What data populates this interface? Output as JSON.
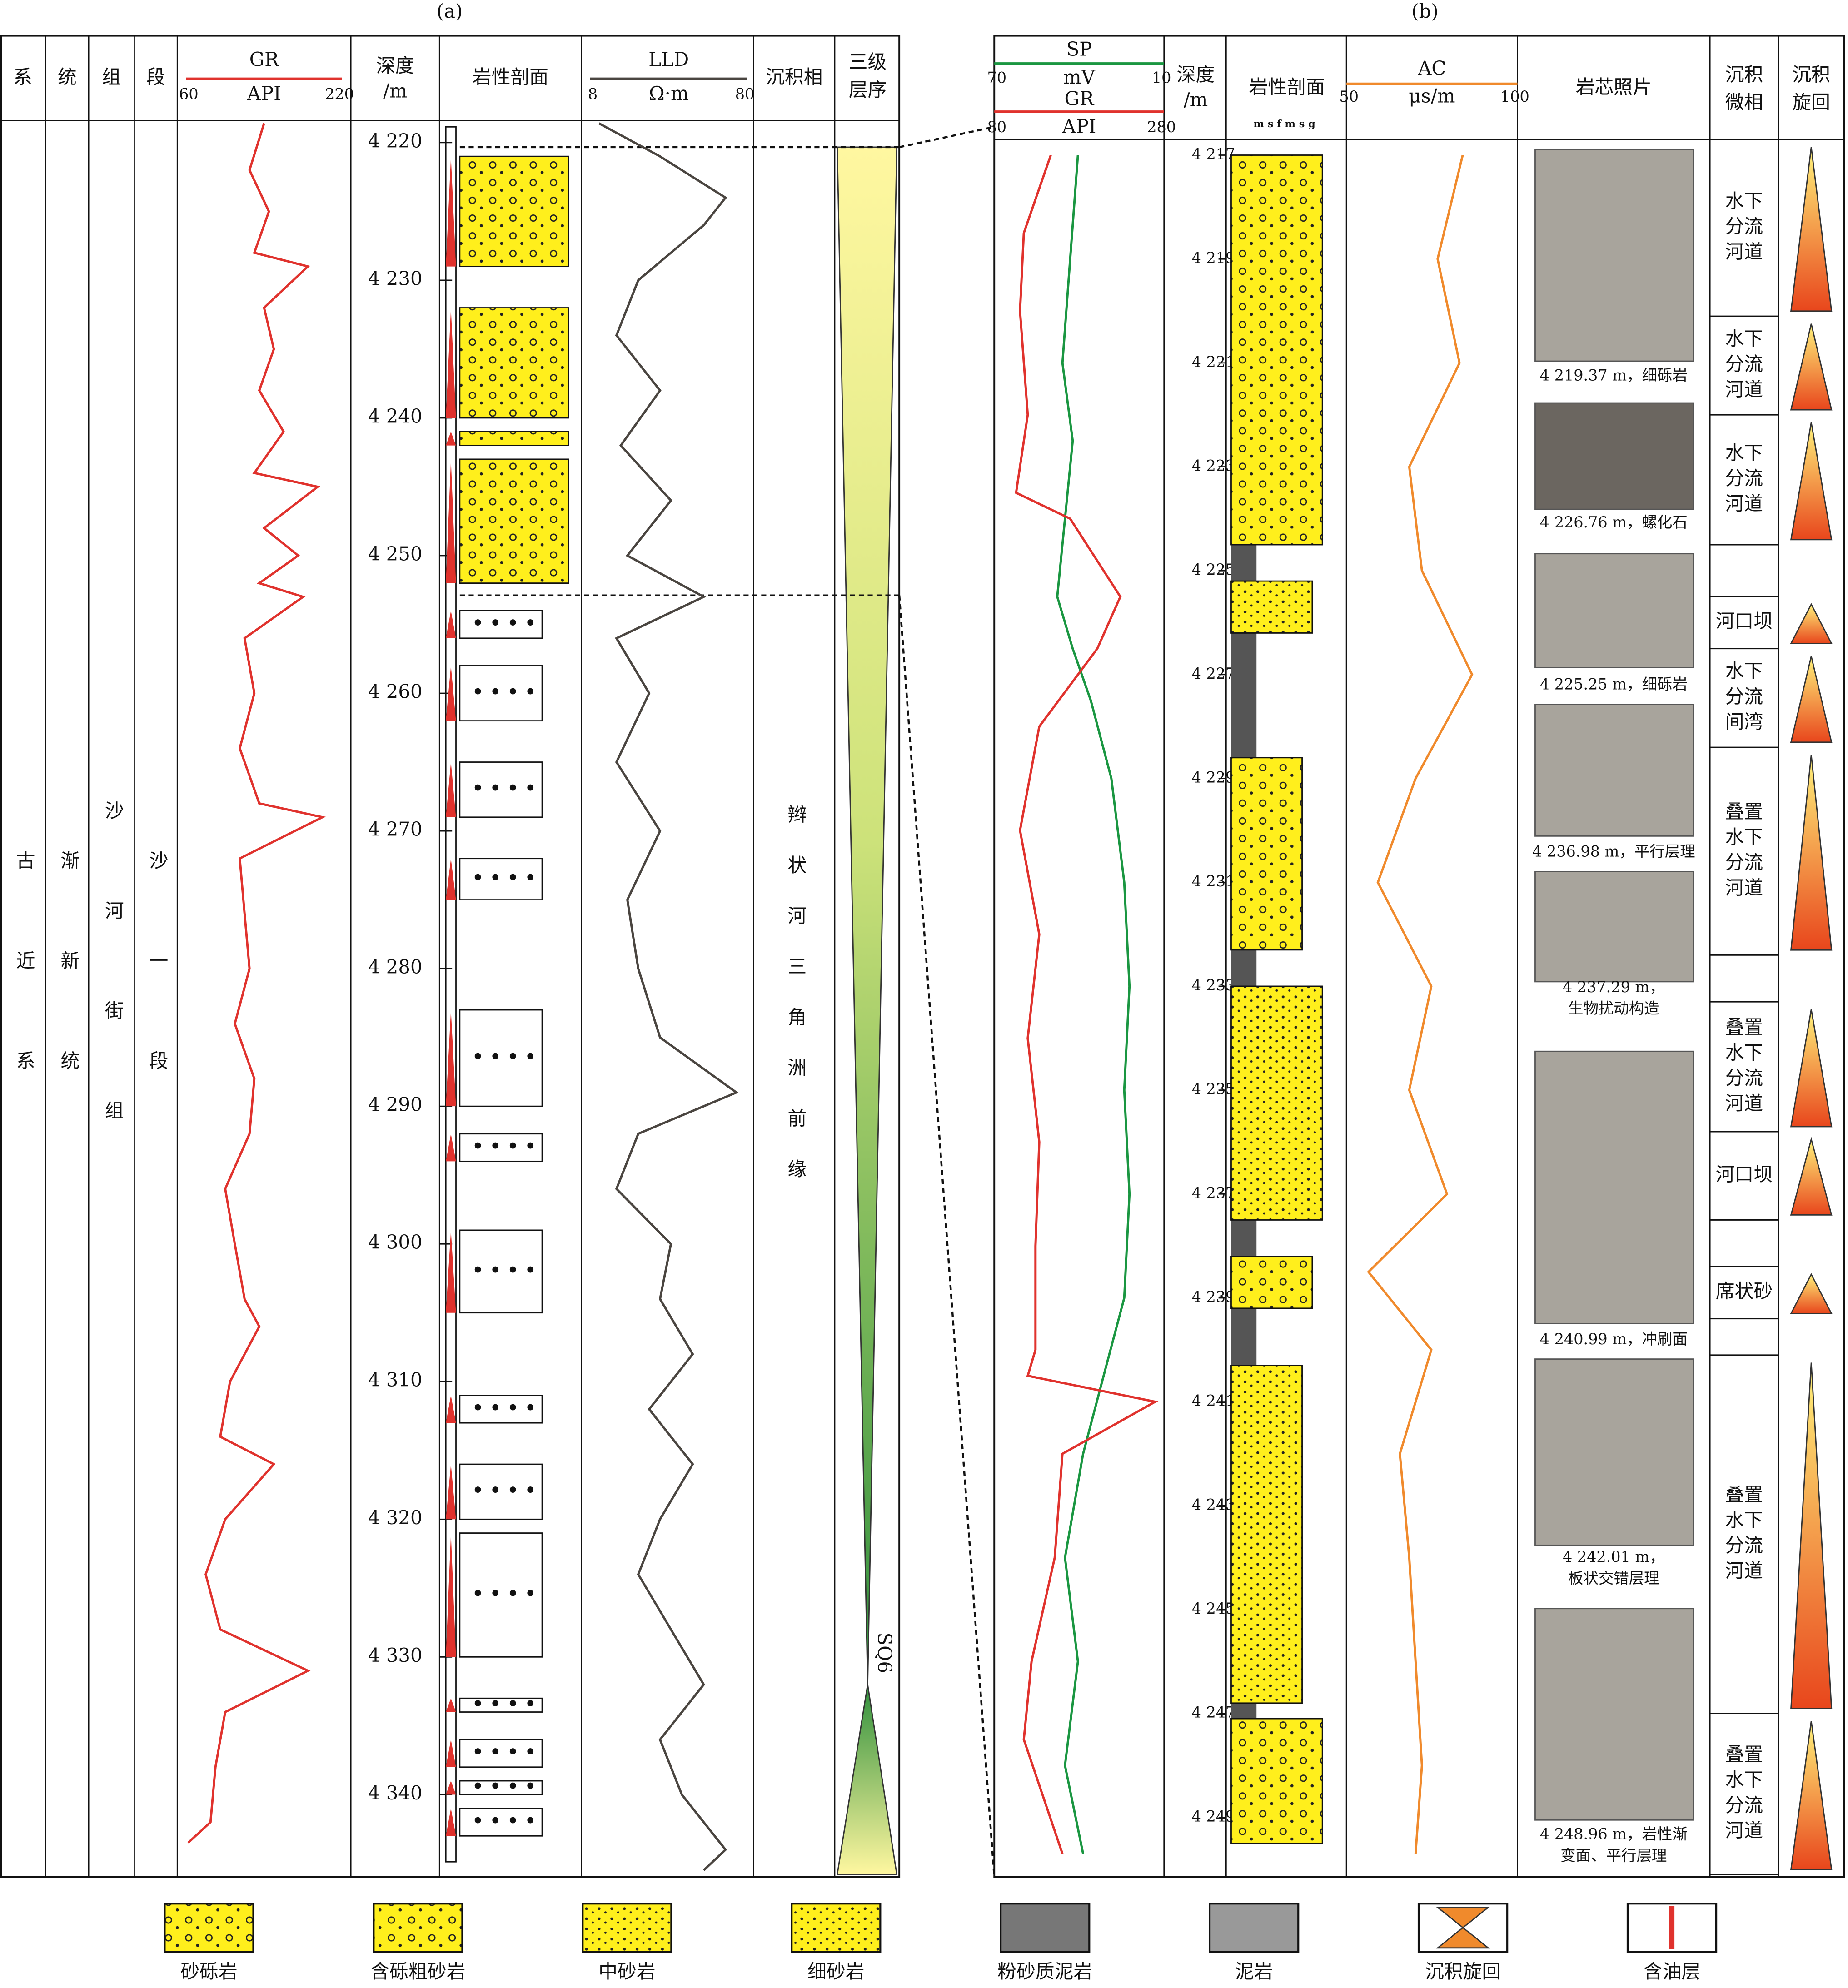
{
  "panel_a": {
    "label": "(a)",
    "headers": {
      "system": "系",
      "series": "统",
      "formation": "组",
      "member": "段",
      "depth": [
        "深度",
        "/m"
      ],
      "lithology": "岩性剖面",
      "facies": "沉积相",
      "sequence": [
        "三级",
        "层序"
      ]
    },
    "gr": {
      "name": "GR",
      "unit": "API",
      "scale": [
        60,
        220
      ],
      "color": "#e0322d",
      "depth": [
        4218.6,
        4222,
        4225,
        4228,
        4229,
        4232,
        4235,
        4238,
        4241,
        4244,
        4245,
        4248,
        4250,
        4252,
        4253,
        4256,
        4260,
        4264,
        4268,
        4269,
        4272,
        4276,
        4280,
        4284,
        4288,
        4292,
        4296,
        4300,
        4304,
        4306,
        4310,
        4314,
        4316,
        4320,
        4324,
        4328,
        4331,
        4334,
        4338,
        4342,
        4343.5
      ],
      "values": [
        140,
        125,
        145,
        130,
        185,
        140,
        150,
        135,
        160,
        130,
        195,
        140,
        175,
        135,
        180,
        120,
        130,
        115,
        135,
        200,
        115,
        120,
        125,
        110,
        130,
        125,
        100,
        110,
        120,
        135,
        105,
        95,
        150,
        100,
        80,
        95,
        185,
        100,
        90,
        85,
        62
      ]
    },
    "lld": {
      "name": "LLD",
      "unit": "Ω·m",
      "scale": [
        8,
        80
      ],
      "color": "#4a4540",
      "depth": [
        4218.6,
        4221,
        4224,
        4226,
        4230,
        4234,
        4238,
        4242,
        4246,
        4250,
        4253,
        4256,
        4260,
        4265,
        4270,
        4275,
        4280,
        4285,
        4289,
        4292,
        4296,
        4300,
        4304,
        4308,
        4312,
        4316,
        4320,
        4324,
        4328,
        4332,
        4336,
        4340,
        4344,
        4345.5
      ],
      "values": [
        12,
        40,
        70,
        60,
        30,
        20,
        40,
        22,
        45,
        25,
        60,
        20,
        35,
        20,
        40,
        25,
        30,
        40,
        75,
        30,
        20,
        45,
        40,
        55,
        35,
        55,
        40,
        30,
        45,
        60,
        40,
        50,
        70,
        60
      ]
    },
    "depth_range": [
      4218.4,
      4345.8
    ],
    "depth_ticks": [
      {
        "value": 4220,
        "label": "4 220"
      },
      {
        "value": 4230,
        "label": "4 230"
      },
      {
        "value": 4240,
        "label": "4 240"
      },
      {
        "value": 4250,
        "label": "4 250"
      },
      {
        "value": 4260,
        "label": "4 260"
      },
      {
        "value": 4270,
        "label": "4 270"
      },
      {
        "value": 4280,
        "label": "4 280"
      },
      {
        "value": 4290,
        "label": "4 290"
      },
      {
        "value": 4300,
        "label": "4 300"
      },
      {
        "value": 4310,
        "label": "4 310"
      },
      {
        "value": 4320,
        "label": "4 320"
      },
      {
        "value": 4330,
        "label": "4 330"
      },
      {
        "value": 4340,
        "label": "4 340"
      }
    ],
    "sands": [
      {
        "top": 4221,
        "base": 4229
      },
      {
        "top": 4232,
        "base": 4240
      },
      {
        "top": 4241,
        "base": 4242
      },
      {
        "top": 4243,
        "base": 4252
      },
      {
        "top": 4254,
        "base": 4256
      },
      {
        "top": 4258,
        "base": 4262
      },
      {
        "top": 4265,
        "base": 4269
      },
      {
        "top": 4272,
        "base": 4275
      },
      {
        "top": 4283,
        "base": 4290
      },
      {
        "top": 4292,
        "base": 4294
      },
      {
        "top": 4299,
        "base": 4305
      },
      {
        "top": 4311,
        "base": 4313
      },
      {
        "top": 4316,
        "base": 4320
      },
      {
        "top": 4321,
        "base": 4330
      },
      {
        "top": 4333,
        "base": 4334
      },
      {
        "top": 4336,
        "base": 4338
      },
      {
        "top": 4339,
        "base": 4340
      },
      {
        "top": 4341,
        "base": 4343
      }
    ],
    "strat": {
      "system": "古近系",
      "series": "渐新统",
      "formation": "沙河街组",
      "member": "沙一段",
      "facies": "辫状河三角洲前缘",
      "sequence": "SQ6"
    }
  },
  "panel_b": {
    "label": "(b)",
    "headers": {
      "depth": [
        "深度",
        "/m"
      ],
      "lithology": "岩性剖面",
      "grain_scale": "m s f m s g",
      "photos": "岩芯照片",
      "microfacies": [
        "沉积",
        "微相"
      ],
      "cycle": [
        "沉积",
        "旋回"
      ]
    },
    "sp": {
      "name": "SP",
      "unit": "mV",
      "scale": [
        70,
        10
      ],
      "color": "#1a9641",
      "depth": [
        4217,
        4219,
        4221,
        4222.5,
        4224,
        4225.5,
        4226.5,
        4227.5,
        4229,
        4231,
        4233,
        4235,
        4237,
        4239,
        4240.5,
        4242,
        4244,
        4246,
        4248,
        4249.7
      ],
      "values": [
        40,
        43,
        46,
        42,
        45,
        48,
        42,
        35,
        27,
        22,
        20,
        22,
        20,
        22,
        30,
        38,
        45,
        40,
        45,
        38
      ]
    },
    "gr": {
      "name": "GR",
      "unit": "API",
      "scale": [
        80,
        280
      ],
      "color": "#e0322d",
      "depth": [
        4217,
        4218.5,
        4220,
        4222,
        4223.5,
        4224,
        4225.5,
        4226.5,
        4228,
        4230,
        4232,
        4234,
        4236,
        4238,
        4240,
        4240.5,
        4241,
        4242,
        4244,
        4246,
        4247.5,
        4249.7
      ],
      "values": [
        145,
        110,
        105,
        115,
        100,
        170,
        235,
        205,
        130,
        105,
        130,
        115,
        130,
        125,
        125,
        115,
        280,
        160,
        150,
        120,
        110,
        160
      ]
    },
    "ac": {
      "name": "AC",
      "unit": "μs/m",
      "scale": [
        50,
        100
      ],
      "color": "#f08a2c",
      "depth": [
        4217,
        4219,
        4221,
        4223,
        4225,
        4227,
        4229,
        4231,
        4233,
        4235,
        4237,
        4238.5,
        4240,
        4242,
        4244,
        4246,
        4248,
        4249.7
      ],
      "values": [
        85,
        77,
        84,
        68,
        72,
        88,
        70,
        58,
        75,
        68,
        80,
        55,
        75,
        65,
        68,
        70,
        72,
        70
      ]
    },
    "depth_range": [
      4216.7,
      4250.1
    ],
    "depth_ticks": [
      {
        "value": 4217,
        "label": "4 217"
      },
      {
        "value": 4219,
        "label": "4 219"
      },
      {
        "value": 4221,
        "label": "4 221"
      },
      {
        "value": 4223,
        "label": "4 223"
      },
      {
        "value": 4225,
        "label": "4 225"
      },
      {
        "value": 4227,
        "label": "4 227"
      },
      {
        "value": 4229,
        "label": "4 229"
      },
      {
        "value": 4231,
        "label": "4 231"
      },
      {
        "value": 4233,
        "label": "4 233"
      },
      {
        "value": 4235,
        "label": "4 235"
      },
      {
        "value": 4237,
        "label": "4 237"
      },
      {
        "value": 4239,
        "label": "4 239"
      },
      {
        "value": 4241,
        "label": "4 241"
      },
      {
        "value": 4243,
        "label": "4 243"
      },
      {
        "value": 4245,
        "label": "4 245"
      },
      {
        "value": 4247,
        "label": "4 247"
      },
      {
        "value": 4249,
        "label": "4 249"
      }
    ],
    "sands": [
      {
        "top": 4217,
        "base": 4224.5
      },
      {
        "top": 4225.2,
        "base": 4226.2
      },
      {
        "top": 4228.6,
        "base": 4232.3
      },
      {
        "top": 4233,
        "base": 4237.5
      },
      {
        "top": 4238.2,
        "base": 4239.2
      },
      {
        "top": 4240.3,
        "base": 4246.8
      },
      {
        "top": 4247.1,
        "base": 4249.5
      }
    ],
    "microfacies": [
      {
        "label": "水下分流河道",
        "top": 4216.7,
        "base": 4220.1
      },
      {
        "label": "水下分流河道",
        "top": 4220.1,
        "base": 4222
      },
      {
        "label": "水下分流河道",
        "top": 4222,
        "base": 4224.5
      },
      {
        "top": 4224.5,
        "base": 4225.5
      },
      {
        "label": "河口坝",
        "top": 4225.5,
        "base": 4226.5
      },
      {
        "label": "水下分流间湾",
        "top": 4226.5,
        "base": 4228.4
      },
      {
        "label": "叠置水下分流河道",
        "top": 4228.4,
        "base": 4232.4
      },
      {
        "top": 4232.4,
        "base": 4233.3
      },
      {
        "label": "叠置水下分流河道",
        "top": 4233.3,
        "base": 4235.8
      },
      {
        "label": "河口坝",
        "top": 4235.8,
        "base": 4237.5
      },
      {
        "top": 4237.5,
        "base": 4238.4
      },
      {
        "label": "席状砂",
        "top": 4238.4,
        "base": 4239.4
      },
      {
        "top": 4239.4,
        "base": 4240.1
      },
      {
        "label": "叠置水下分流河道",
        "top": 4240.1,
        "base": 4247
      },
      {
        "label": "叠置水下分流河道",
        "top": 4247,
        "base": 4250.1
      }
    ],
    "photo_captions": [
      [
        "4 219.37 m，细砾岩"
      ],
      [
        "4 226.76 m，螺化石"
      ],
      [
        "4 225.25 m，细砾岩"
      ],
      [
        "4 236.98 m，平行层理"
      ],
      [
        "4 237.29 m，",
        "生物扰动构造"
      ],
      [
        "4 240.99 m，冲刷面"
      ],
      [
        "4 242.01 m，",
        "板状交错层理"
      ],
      [
        "4 248.96 m，岩性渐",
        "变面、平行层理"
      ]
    ]
  },
  "legend": [
    "砂砾岩",
    "含砾粗砂岩",
    "中砂岩",
    "细砂岩",
    "粉砂质泥岩",
    "泥岩",
    "沉积旋回",
    "含油层"
  ]
}
